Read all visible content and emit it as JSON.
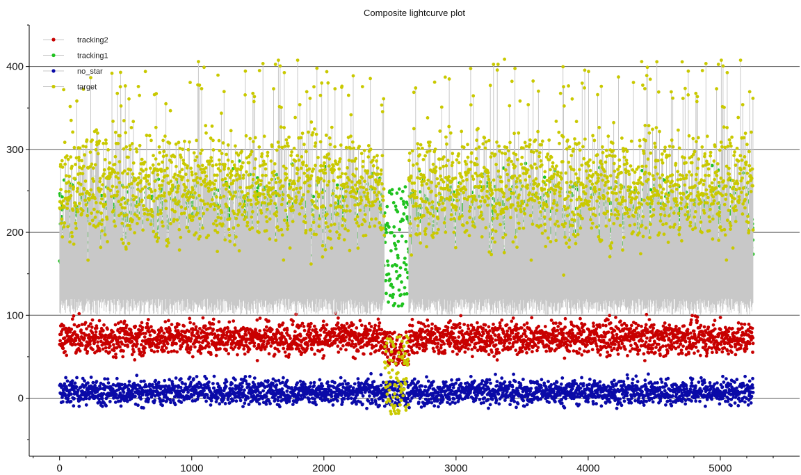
{
  "chart_data": {
    "type": "scatter",
    "title": "Composite lightcurve plot",
    "xlabel": "",
    "ylabel": "",
    "xlim": [
      -230,
      5600
    ],
    "ylim": [
      -70,
      450
    ],
    "x_ticks": [
      0,
      1000,
      2000,
      3000,
      4000,
      5000
    ],
    "y_ticks": [
      0,
      100,
      200,
      300,
      400
    ],
    "grid": "horizontal",
    "legend_position": "top-left",
    "x_range": [
      0,
      5250
    ],
    "gap_range": [
      2460,
      2640
    ],
    "series": [
      {
        "name": "tracking2",
        "color": "#c80000",
        "typical_range": [
          30,
          115
        ],
        "gap_range": [
          40,
          80
        ]
      },
      {
        "name": "tracking1",
        "color": "#1fc21f",
        "typical_range": [
          100,
          320
        ],
        "gap_range": [
          110,
          255
        ]
      },
      {
        "name": "no_star",
        "color": "#0a0aa8",
        "typical_range": [
          -25,
          40
        ],
        "gap_range": [
          -10,
          20
        ]
      },
      {
        "name": "target",
        "color": "#c9c900",
        "typical_range": [
          100,
          410
        ],
        "gap_range": [
          -20,
          75
        ]
      }
    ],
    "line_color": "#c8c8c8"
  }
}
